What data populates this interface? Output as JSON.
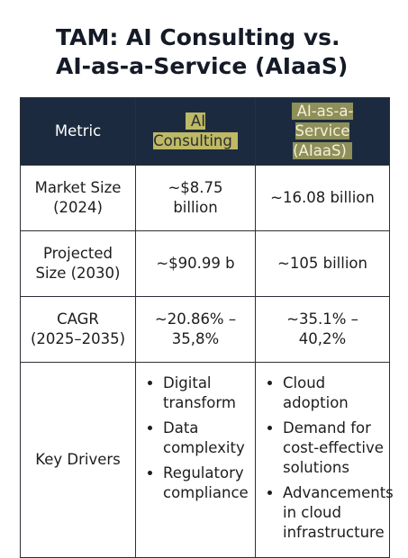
{
  "header": {
    "title": "TAM: AI Consulting vs. AI-as-a-Service (AIaaS)"
  },
  "table": {
    "columns": [
      "Metric",
      "AI Consulting",
      "AI-as-a-Service (AIaaS)"
    ],
    "rows": [
      [
        "Market Size (2024)",
        "~$8.75 billion",
        "~16.08 billion"
      ],
      [
        "Projected Size (2030)",
        "~$90.99 b",
        "~105 billion"
      ],
      [
        "CAGR (2025–2035)",
        "~20.86% – 35,8%",
        "~35.1% – 40,2%"
      ]
    ],
    "drivers": {
      "label": "Key Drivers",
      "ai_consulting": [
        "Digital transform",
        "Data complexity",
        "Regulatory compliance"
      ],
      "aiaas": [
        "Cloud adoption",
        "Demand for cost-effective solutions",
        "Advancements in cloud infrastructure"
      ]
    }
  }
}
